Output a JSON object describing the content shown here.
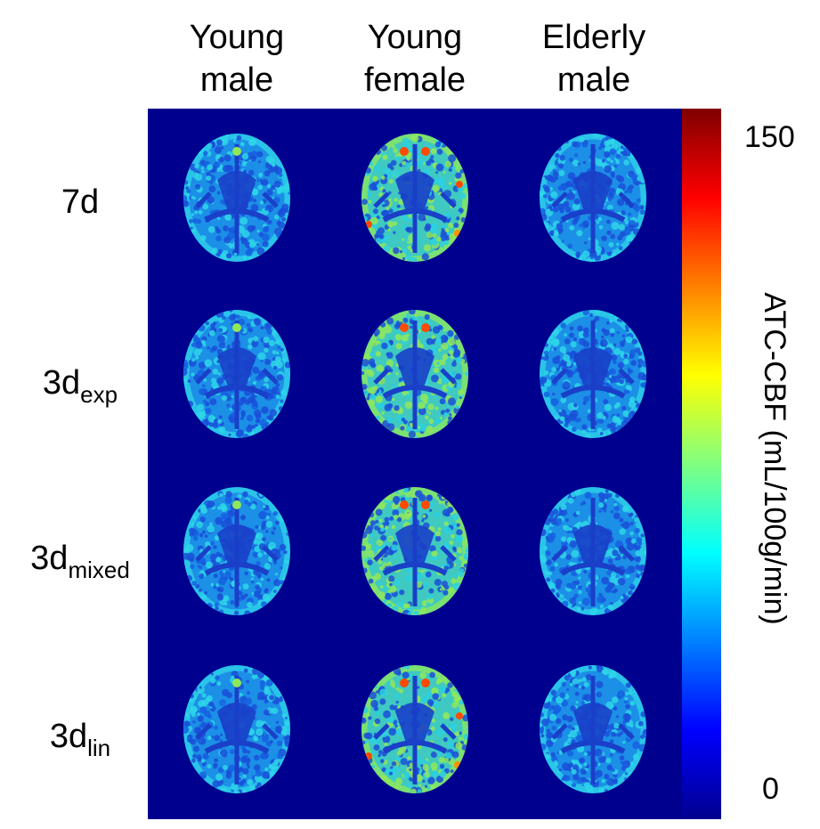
{
  "columns": [
    {
      "line1": "Young",
      "line2": "male"
    },
    {
      "line1": "Young",
      "line2": "female"
    },
    {
      "line1": "Elderly",
      "line2": "male"
    }
  ],
  "rows": [
    {
      "main": "7d",
      "sub": ""
    },
    {
      "main": "3d",
      "sub": "exp"
    },
    {
      "main": "3d",
      "sub": "mixed"
    },
    {
      "main": "3d",
      "sub": "lin"
    }
  ],
  "colorbar": {
    "max_label": "150",
    "min_label": "0",
    "title": "ATC-CBF (mL/100g/min)",
    "colormap": "jet",
    "stops": [
      "#00008f",
      "#0000ff",
      "#0080ff",
      "#00ffff",
      "#80ff80",
      "#ffff00",
      "#ff8000",
      "#ff0000",
      "#800000"
    ]
  },
  "colors": {
    "background": "#00008f",
    "tissue_base": "#1c8fe6",
    "tissue_low": "#1a4fd8",
    "tissue_high": "#2ed6e8",
    "female_high": "#8fe85a",
    "hot": "#ff4a00"
  }
}
